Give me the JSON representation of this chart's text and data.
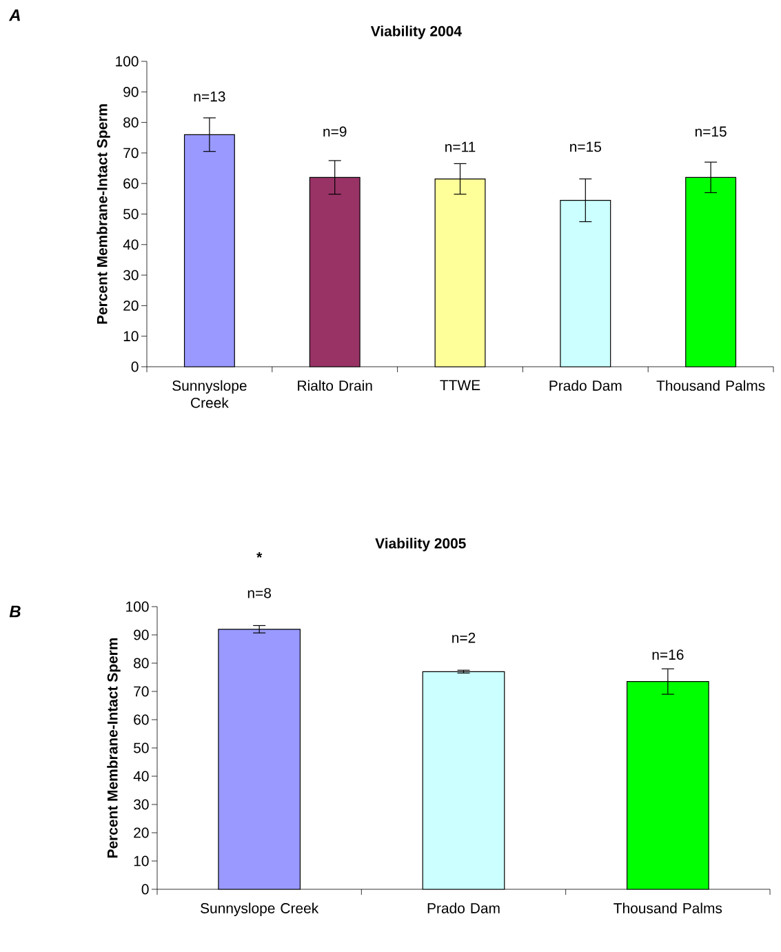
{
  "chart_data": [
    {
      "type": "bar",
      "title": "Viability 2004",
      "ylabel": "Percent Membrane-Intact Sperm",
      "categories": [
        "Sunnyslope Creek",
        "Rialto Drain",
        "TTWE",
        "Prado Dam",
        "Thousand Palms"
      ],
      "values": [
        76,
        62,
        61.5,
        54.5,
        62
      ],
      "errors": [
        5.5,
        5.5,
        5,
        7,
        5
      ],
      "colors": [
        "#9999ff",
        "#993366",
        "#ffff99",
        "#ccffff",
        "#00ff00"
      ],
      "ylim": [
        0,
        100
      ],
      "yticks": [
        0,
        10,
        20,
        30,
        40,
        50,
        60,
        70,
        80,
        90,
        100
      ],
      "annotations": [
        "A",
        "n=13",
        "n=9",
        "n=11",
        "n=15",
        "n=15"
      ]
    },
    {
      "type": "bar",
      "title": "Viability 2005",
      "ylabel": "Percent Membrane-Intact Sperm",
      "categories": [
        "Sunnyslope Creek",
        "Prado Dam",
        "Thousand Palms"
      ],
      "values": [
        92,
        77,
        73.5
      ],
      "errors": [
        1.3,
        0.5,
        4.5
      ],
      "colors": [
        "#9999ff",
        "#ccffff",
        "#00ff00"
      ],
      "ylim": [
        0,
        100
      ],
      "yticks": [
        0,
        10,
        20,
        30,
        40,
        50,
        60,
        70,
        80,
        90,
        100
      ],
      "annotations": [
        "B",
        "*",
        "n=8",
        "n=2",
        "n=16"
      ]
    }
  ]
}
